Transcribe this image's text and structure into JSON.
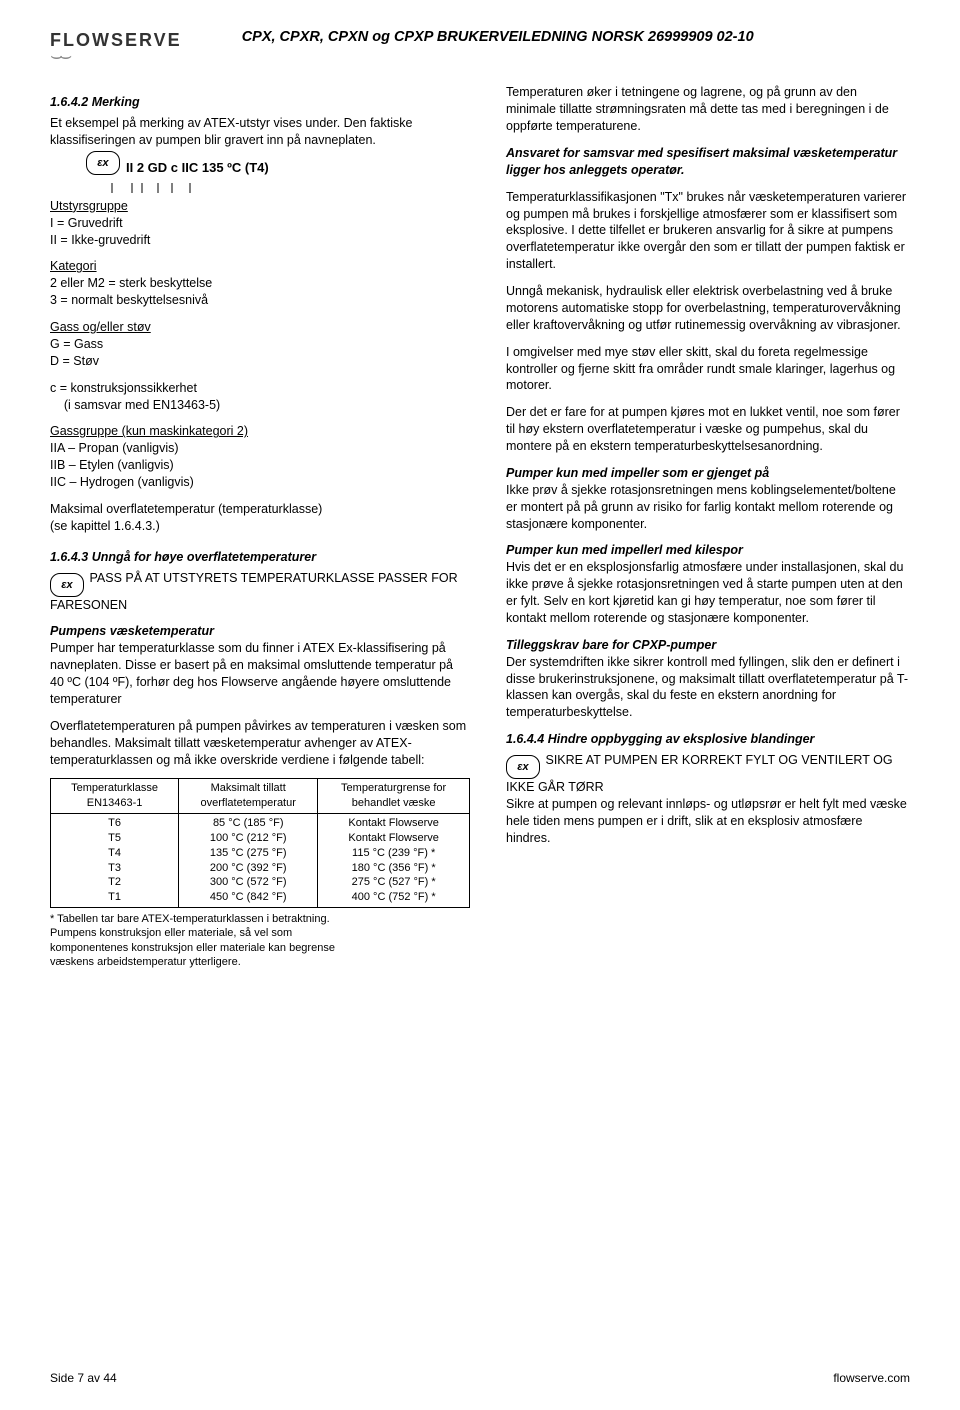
{
  "header": {
    "logo_text": "FLOWSERVE",
    "doc_title": "CPX, CPXR, CPXN og CPXP BRUKERVEILEDNING  NORSK  26999909  02-10"
  },
  "left": {
    "s1_title": "1.6.4.2  Merking",
    "s1_p1": "Et eksempel på merking av ATEX-utstyr vises under. Den faktiske klassifiseringen av pumpen blir gravert inn på navneplaten.",
    "marking_code": "II 2 GD c IIC 135 ºC (T4)",
    "grp_heading": "Utstyrsgruppe",
    "grp_l1": "I = Gruvedrift",
    "grp_l2": "II = Ikke-gruvedrift",
    "cat_heading": "Kategori",
    "cat_l1": "2 eller M2 = sterk beskyttelse",
    "cat_l2": "3 = normalt beskyttelsesnivå",
    "gas_heading": "Gass og/eller støv",
    "gas_l1": "G = Gass",
    "gas_l2": "D = Støv",
    "c_l1": "c = konstruksjonssikkerhet",
    "c_l2": "    (i samsvar med EN13463-5)",
    "gg_heading": "Gassgruppe (kun maskinkategori 2)",
    "gg_l1": "IIA – Propan (vanligvis)",
    "gg_l2": "IIB – Etylen (vanligvis)",
    "gg_l3": "IIC – Hydrogen (vanligvis)",
    "maxtemp_l1": "Maksimal overflatetemperatur (temperaturklasse)",
    "maxtemp_l2": "(se kapittel 1.6.4.3.)",
    "s2_title": "1.6.4.3   Unngå for høye overflatetemperaturer",
    "s2_warn": "PASS PÅ AT UTSTYRETS TEMPERATURKLASSE PASSER FOR FARESONEN",
    "s2_sub1_title": "Pumpens væsketemperatur",
    "s2_sub1_p1": "Pumper har temperaturklasse som du finner i ATEX Ex-klassifisering på navneplaten.  Disse er basert på en maksimal omsluttende temperatur på 40 ºC (104 ºF), forhør deg hos Flowserve angående høyere omsluttende temperaturer",
    "s2_sub1_p2": "Overflatetemperaturen på pumpen påvirkes av temperaturen i væsken som behandles.  Maksimalt tillatt væsketemperatur avhenger av ATEX-temperaturklassen og må ikke overskride verdiene i følgende tabell:",
    "table": {
      "h1a": "Temperaturklasse",
      "h1b": "EN13463-1",
      "h2a": "Maksimalt tillatt",
      "h2b": "overflatetemperatur",
      "h3a": "Temperaturgrense for",
      "h3b": "behandlet væske",
      "rows": [
        [
          "T6",
          "85 °C (185 °F)",
          "Kontakt Flowserve"
        ],
        [
          "T5",
          "100 °C (212 °F)",
          "Kontakt Flowserve"
        ],
        [
          "T4",
          "135 °C (275 °F)",
          "115 °C (239 °F) *"
        ],
        [
          "T3",
          "200 °C (392 °F)",
          "180 °C (356 °F) *"
        ],
        [
          "T2",
          "300 °C (572 °F)",
          "275 °C (527 °F) *"
        ],
        [
          "T1",
          "450 °C (842 °F)",
          "400 °C (752 °F) *"
        ]
      ]
    },
    "footnote": "* Tabellen tar bare ATEX-temperaturklassen i betraktning.\n   Pumpens konstruksjon eller materiale, så vel som\n   komponentenes konstruksjon eller materiale kan begrense\n   væskens arbeidstemperatur ytterligere."
  },
  "right": {
    "p1": "Temperaturen øker i tetningene og lagrene, og på grunn av den minimale tillatte strømningsraten må dette tas med i beregningen i de oppførte temperaturene.",
    "p2": "Ansvaret for samsvar med spesifisert maksimal væsketemperatur ligger hos anleggets operatør.",
    "p3": "Temperaturklassifikasjonen \"Tx\" brukes når væsketemperaturen varierer og pumpen må brukes  i forskjellige atmosfærer som er klassifisert som eksplosive.  I dette tilfellet er brukeren ansvarlig for å sikre at pumpens overflatetemperatur ikke overgår den som er tillatt der pumpen faktisk er installert.",
    "p4": "Unngå mekanisk, hydraulisk eller elektrisk overbelastning ved å bruke motorens automatiske stopp for overbelastning, temperaturovervåkning eller kraftovervåkning og utfør rutinemessig overvåkning av vibrasjoner.",
    "p5": "I omgivelser med mye støv eller skitt, skal du foreta regelmessige kontroller og fjerne skitt fra områder rundt smale klaringer, lagerhus og motorer.",
    "p6": "Der det er fare for at pumpen kjøres mot en lukket ventil, noe som fører til høy ekstern overflatetemperatur i væske og pumpehus, skal du montere på en ekstern temperaturbeskyttelsesanordning.",
    "sub1_title": "Pumper kun med impeller som er gjenget på",
    "sub1_p": "Ikke prøv å sjekke rotasjonsretningen mens koblingselementet/boltene er montert på på grunn av risiko for farlig kontakt mellom roterende og stasjonære komponenter.",
    "sub2_title": "Pumper kun med impellerl med kilespor",
    "sub2_p": "Hvis det er en eksplosjonsfarlig atmosfære under installasjonen, skal du ikke prøve å sjekke rotasjonsretningen ved å starte pumpen uten at den er fylt.  Selv en kort kjøretid kan gi høy temperatur, noe som fører til kontakt mellom roterende og stasjonære komponenter.",
    "sub3_title": "Tilleggskrav bare for CPXP-pumper",
    "sub3_p": "Der systemdriften ikke sikrer kontroll med fyllingen, slik den er definert i disse brukerinstruksjonene, og maksimalt tillatt overflatetemperatur på T-klassen kan overgås, skal du feste en ekstern anordning for temperaturbeskyttelse.",
    "s4_title": "1.6.4.4  Hindre oppbygging av eksplosive blandinger",
    "s4_warn": "SIKRE AT PUMPEN ER KORREKT FYLT OG VENTILERT OG IKKE GÅR TØRR",
    "s4_p": "Sikre at pumpen og relevant innløps- og utløpsrør er helt fylt med væske hele tiden mens pumpen er i drift, slik at en eksplosiv atmosfære hindres."
  },
  "footer": {
    "left": "Side 7 av 44",
    "right": "flowserve.com"
  }
}
